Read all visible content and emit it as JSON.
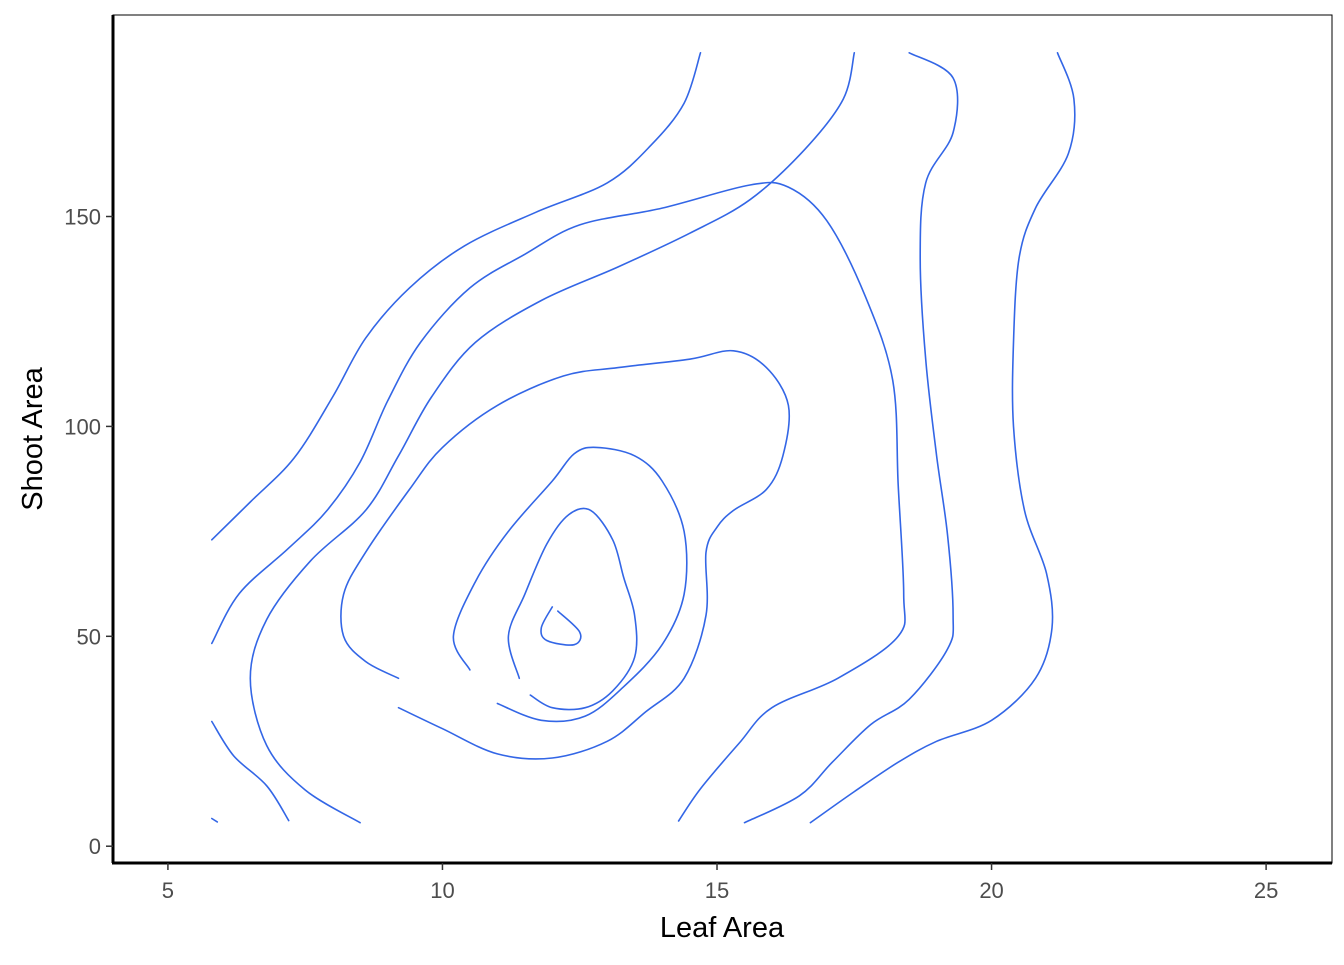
{
  "chart_data": {
    "type": "contour",
    "title": "",
    "xlabel": "Leaf Area",
    "ylabel": "Shoot Area",
    "xlim": [
      4,
      26.2
    ],
    "ylim": [
      -4,
      198
    ],
    "x_ticks": [
      5,
      10,
      15,
      20,
      25
    ],
    "y_ticks": [
      0,
      50,
      100,
      150
    ],
    "x_tick_labels": [
      "5",
      "10",
      "15",
      "20",
      "25"
    ],
    "y_tick_labels": [
      "0",
      "50",
      "100",
      "150"
    ],
    "grid": false,
    "legend": "none",
    "line_color": "#3366E6",
    "contours": [
      [
        [
          5.8,
          6.6
        ],
        [
          5.9,
          5.8
        ]
      ],
      [
        [
          5.8,
          29.7
        ],
        [
          6.2,
          21.5
        ],
        [
          6.8,
          14.4
        ],
        [
          7.2,
          6.1
        ]
      ],
      [
        [
          5.8,
          48.3
        ],
        [
          6.3,
          60.2
        ],
        [
          7.2,
          71.0
        ],
        [
          7.9,
          80.0
        ],
        [
          8.5,
          91.5
        ],
        [
          9.0,
          106.0
        ],
        [
          9.6,
          120.0
        ],
        [
          10.5,
          133.0
        ],
        [
          11.5,
          141.0
        ],
        [
          12.5,
          148.0
        ],
        [
          14.0,
          152.0
        ],
        [
          15.6,
          157.5
        ],
        [
          16.3,
          157.0
        ],
        [
          17.0,
          149.0
        ],
        [
          17.7,
          131.0
        ],
        [
          18.2,
          111.0
        ],
        [
          18.3,
          86.0
        ],
        [
          18.4,
          60.0
        ],
        [
          18.3,
          50.0
        ],
        [
          17.2,
          40.0
        ],
        [
          16.0,
          33.0
        ],
        [
          15.4,
          24.5
        ],
        [
          14.7,
          13.7
        ],
        [
          14.3,
          6.0
        ]
      ],
      [
        [
          5.8,
          73.0
        ],
        [
          6.5,
          82.0
        ],
        [
          7.3,
          92.5
        ],
        [
          8.0,
          107.0
        ],
        [
          8.6,
          121.0
        ],
        [
          9.4,
          133.0
        ],
        [
          10.4,
          143.0
        ],
        [
          11.7,
          151.0
        ],
        [
          13.0,
          158.0
        ],
        [
          13.8,
          167.0
        ],
        [
          14.4,
          177.0
        ],
        [
          14.7,
          189.0
        ]
      ],
      [
        [
          8.5,
          5.6
        ],
        [
          7.5,
          13.4
        ],
        [
          6.8,
          24.0
        ],
        [
          6.5,
          40.0
        ],
        [
          6.8,
          54.0
        ],
        [
          7.6,
          68.0
        ],
        [
          8.6,
          80.0
        ],
        [
          9.2,
          93.0
        ],
        [
          9.8,
          107.0
        ],
        [
          10.6,
          120.0
        ],
        [
          11.8,
          130.0
        ],
        [
          13.2,
          138.0
        ],
        [
          14.5,
          146.0
        ],
        [
          15.6,
          154.0
        ],
        [
          16.6,
          166.0
        ],
        [
          17.3,
          178.0
        ],
        [
          17.5,
          189.0
        ]
      ],
      [
        [
          18.5,
          189.0
        ],
        [
          19.3,
          183.0
        ],
        [
          19.3,
          170.0
        ],
        [
          18.8,
          158.0
        ],
        [
          18.7,
          140.0
        ],
        [
          18.8,
          116.0
        ],
        [
          19.0,
          93.0
        ],
        [
          19.2,
          74.0
        ],
        [
          19.3,
          55.0
        ],
        [
          19.2,
          47.0
        ],
        [
          18.5,
          35.0
        ],
        [
          17.8,
          29.0
        ],
        [
          17.1,
          20.0
        ],
        [
          16.5,
          12.0
        ],
        [
          15.5,
          5.6
        ]
      ],
      [
        [
          21.2,
          189.0
        ],
        [
          21.5,
          178.0
        ],
        [
          21.4,
          165.0
        ],
        [
          20.8,
          152.0
        ],
        [
          20.5,
          140.0
        ],
        [
          20.4,
          120.0
        ],
        [
          20.4,
          100.0
        ],
        [
          20.6,
          80.0
        ],
        [
          21.0,
          65.0
        ],
        [
          21.1,
          52.0
        ],
        [
          20.8,
          40.0
        ],
        [
          20.0,
          30.0
        ],
        [
          19.0,
          25.0
        ],
        [
          18.3,
          20.0
        ],
        [
          17.5,
          13.0
        ],
        [
          16.7,
          5.6
        ]
      ],
      [
        [
          9.2,
          40.0
        ],
        [
          8.6,
          44.0
        ],
        [
          8.2,
          50.0
        ],
        [
          8.2,
          60.0
        ],
        [
          8.6,
          70.0
        ],
        [
          9.4,
          85.0
        ],
        [
          10.0,
          95.0
        ],
        [
          11.0,
          105.0
        ],
        [
          12.2,
          112.0
        ],
        [
          13.2,
          114.0
        ],
        [
          14.5,
          116.0
        ],
        [
          15.3,
          118.0
        ],
        [
          15.9,
          114.0
        ],
        [
          16.3,
          105.0
        ],
        [
          16.2,
          93.0
        ],
        [
          15.9,
          85.0
        ],
        [
          15.3,
          80.0
        ],
        [
          15.0,
          76.0
        ],
        [
          14.8,
          70.0
        ],
        [
          14.8,
          55.0
        ],
        [
          14.4,
          40.0
        ],
        [
          13.7,
          32.0
        ],
        [
          13.0,
          25.0
        ],
        [
          12.0,
          21.0
        ],
        [
          11.0,
          22.0
        ],
        [
          10.0,
          28.0
        ],
        [
          9.2,
          33.0
        ]
      ],
      [
        [
          10.5,
          42.0
        ],
        [
          10.2,
          50.0
        ],
        [
          10.6,
          63.0
        ],
        [
          11.2,
          75.0
        ],
        [
          12.0,
          87.0
        ],
        [
          12.4,
          93.5
        ],
        [
          12.8,
          95.0
        ],
        [
          13.5,
          93.0
        ],
        [
          14.0,
          87.0
        ],
        [
          14.4,
          75.0
        ],
        [
          14.4,
          60.0
        ],
        [
          14.0,
          48.0
        ],
        [
          13.3,
          38.0
        ],
        [
          12.6,
          31.0
        ],
        [
          11.8,
          30.0
        ],
        [
          11.0,
          34.0
        ]
      ],
      [
        [
          11.4,
          40.0
        ],
        [
          11.2,
          50.0
        ],
        [
          11.5,
          60.0
        ],
        [
          11.9,
          72.0
        ],
        [
          12.3,
          79.0
        ],
        [
          12.7,
          80.0
        ],
        [
          13.1,
          73.0
        ],
        [
          13.3,
          64.0
        ],
        [
          13.5,
          55.0
        ],
        [
          13.5,
          45.0
        ],
        [
          13.1,
          37.0
        ],
        [
          12.6,
          33.0
        ],
        [
          12.0,
          33.0
        ],
        [
          11.6,
          36.0
        ]
      ],
      [
        [
          12.0,
          57.0
        ],
        [
          11.8,
          52.0
        ],
        [
          11.9,
          49.0
        ],
        [
          12.4,
          48.0
        ],
        [
          12.5,
          51.0
        ],
        [
          12.1,
          56.0
        ]
      ]
    ]
  }
}
